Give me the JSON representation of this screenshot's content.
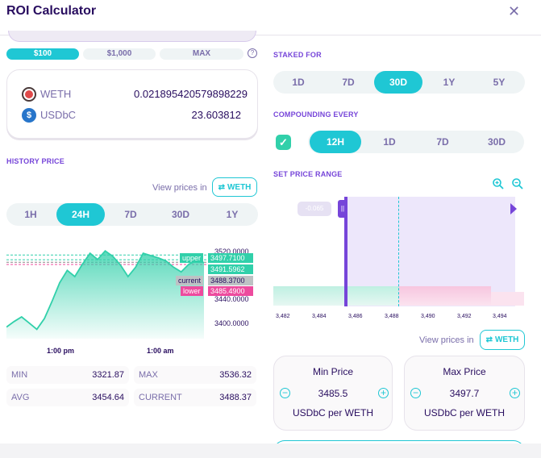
{
  "header": {
    "title": "ROI Calculator",
    "close_icon": "close-icon"
  },
  "amount_buttons": [
    "$100",
    "$1,000",
    "MAX"
  ],
  "tokens": [
    {
      "symbol": "WETH",
      "amount": "0.021895420579898229",
      "icon": "weth-token-icon"
    },
    {
      "symbol": "USDbC",
      "amount": "23.603812",
      "icon": "usdbc-token-icon"
    }
  ],
  "history": {
    "label": "HISTORY PRICE",
    "view_prices_in": "View prices in",
    "currency_button": "WETH",
    "ranges": [
      "1H",
      "24H",
      "7D",
      "30D",
      "1Y"
    ],
    "active_range": "24H",
    "y_ticks": [
      "3520.0000",
      "3440.0000",
      "3400.0000"
    ],
    "x_ticks": [
      "1:00 pm",
      "1:00 am"
    ],
    "markers": {
      "upper_label": "upper",
      "upper_value": "3497.7100",
      "second_value": "3491.5962",
      "current_label": "current",
      "current_value": "3488.3700",
      "lower_label": "lower",
      "lower_value": "3485.4900"
    },
    "chart_data": {
      "type": "area",
      "series": [
        {
          "values": [
            3405,
            3412,
            3418,
            3410,
            3402,
            3416,
            3438,
            3462,
            3478,
            3470,
            3486,
            3500,
            3492,
            3503,
            3496,
            3485,
            3470,
            3482,
            3500,
            3497,
            3494,
            3490,
            3482,
            3476,
            3486,
            3490,
            3488
          ]
        }
      ],
      "ylim": [
        3390,
        3525
      ]
    },
    "stats": {
      "min_label": "MIN",
      "min": "3321.87",
      "max_label": "MAX",
      "max": "3536.32",
      "avg_label": "AVG",
      "avg": "3454.64",
      "current_label": "CURRENT",
      "current": "3488.37"
    }
  },
  "staked_for": {
    "label": "STAKED FOR",
    "options": [
      "1D",
      "7D",
      "30D",
      "1Y",
      "5Y"
    ],
    "active": "30D"
  },
  "compounding": {
    "label": "COMPOUNDING EVERY",
    "checked": true,
    "options": [
      "12H",
      "1D",
      "7D",
      "30D"
    ],
    "active": "12H"
  },
  "price_range": {
    "label": "SET PRICE RANGE",
    "current_tag": "-0.065",
    "x_ticks": [
      "3,482",
      "3,484",
      "3,486",
      "3,488",
      "3,490",
      "3,492",
      "3,494"
    ],
    "view_prices_in": "View prices in",
    "currency_button": "WETH",
    "min": {
      "title": "Min Price",
      "value": "3485.5",
      "unit": "USDbC per WETH"
    },
    "max": {
      "title": "Max Price",
      "value": "3497.7",
      "unit": "USDbC per WETH"
    }
  },
  "colors": {
    "primary": "#1fc7d4",
    "secondary": "#7645d9",
    "text": "#280d5f",
    "muted": "#7a6eaa",
    "success": "#31d0aa",
    "failure": "#ed4b9e"
  }
}
